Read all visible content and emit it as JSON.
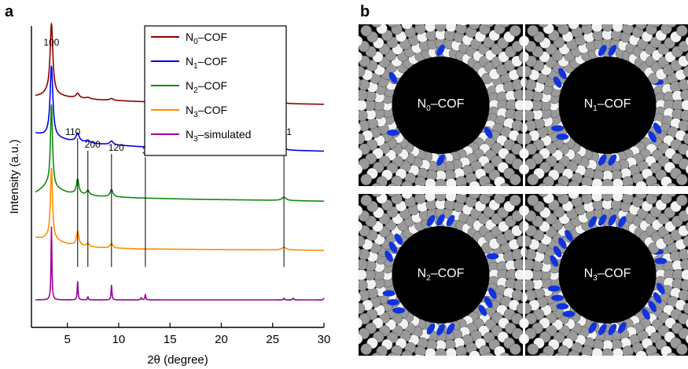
{
  "panel_a_letter": "a",
  "panel_b_letter": "b",
  "chart_data": {
    "type": "line",
    "xlabel": "2θ (degree)",
    "ylabel": "Intensity (a.u.)",
    "xlim": [
      1.5,
      30
    ],
    "x_ticks": [
      5,
      10,
      15,
      20,
      25,
      30
    ],
    "y_tick_labels": "none",
    "grid": false,
    "legend_position": "top-right",
    "series": [
      {
        "name": "N0–COF",
        "label_main": "N",
        "label_sub": "0",
        "label_rest": "–COF",
        "color": "#8b0000",
        "offset": 4,
        "baseline": [
          [
            1.9,
            0.2
          ],
          [
            2.5,
            0.22
          ],
          [
            3.0,
            0.26
          ],
          [
            5,
            0.18
          ],
          [
            8,
            0.12
          ],
          [
            12,
            0.08
          ],
          [
            18,
            0.06
          ],
          [
            25,
            0.04
          ],
          [
            30,
            0.02
          ]
        ],
        "peaks": [
          [
            3.45,
            1.55,
            0.16
          ],
          [
            6.0,
            0.1,
            0.18
          ],
          [
            7.0,
            0.03,
            0.2
          ],
          [
            9.3,
            0.04,
            0.2
          ],
          [
            26.1,
            0.03,
            0.25
          ]
        ]
      },
      {
        "name": "N1–COF",
        "label_main": "N",
        "label_sub": "1",
        "label_rest": "–COF",
        "color": "#0000ee",
        "offset": 3,
        "baseline": [
          [
            1.9,
            0.45
          ],
          [
            2.5,
            0.42
          ],
          [
            3.0,
            0.4
          ],
          [
            5,
            0.3
          ],
          [
            8,
            0.22
          ],
          [
            12,
            0.16
          ],
          [
            18,
            0.12
          ],
          [
            25,
            0.09
          ],
          [
            30,
            0.06
          ]
        ],
        "peaks": [
          [
            3.45,
            1.55,
            0.16
          ],
          [
            6.0,
            0.18,
            0.18
          ],
          [
            7.0,
            0.05,
            0.2
          ],
          [
            9.3,
            0.08,
            0.2
          ],
          [
            26.1,
            0.05,
            0.25
          ]
        ]
      },
      {
        "name": "N2–COF",
        "label_main": "N",
        "label_sub": "2",
        "label_rest": "–COF",
        "color": "#118811",
        "offset": 2,
        "baseline": [
          [
            1.9,
            0.22
          ],
          [
            2.5,
            0.3
          ],
          [
            3.0,
            0.38
          ],
          [
            5,
            0.22
          ],
          [
            8,
            0.14
          ],
          [
            12,
            0.1
          ],
          [
            18,
            0.07
          ],
          [
            25,
            0.05
          ],
          [
            30,
            0.03
          ]
        ],
        "peaks": [
          [
            3.45,
            1.8,
            0.12
          ],
          [
            6.0,
            0.32,
            0.14
          ],
          [
            7.0,
            0.1,
            0.16
          ],
          [
            9.3,
            0.16,
            0.16
          ],
          [
            26.1,
            0.07,
            0.25
          ]
        ]
      },
      {
        "name": "N3–COF",
        "label_main": "N",
        "label_sub": "3",
        "label_rest": "–COF",
        "color": "#ff8c00",
        "offset": 1,
        "baseline": [
          [
            1.9,
            0.3
          ],
          [
            2.5,
            0.28
          ],
          [
            3.0,
            0.3
          ],
          [
            5,
            0.16
          ],
          [
            8,
            0.08
          ],
          [
            12,
            0.05
          ],
          [
            18,
            0.04
          ],
          [
            25,
            0.03
          ],
          [
            30,
            0.02
          ]
        ],
        "peaks": [
          [
            3.45,
            1.55,
            0.12
          ],
          [
            6.0,
            0.3,
            0.14
          ],
          [
            7.0,
            0.06,
            0.16
          ],
          [
            9.3,
            0.1,
            0.16
          ],
          [
            26.1,
            0.06,
            0.25
          ]
        ]
      },
      {
        "name": "N3–simulated",
        "label_main": "N",
        "label_sub": "3",
        "label_rest": "–simulated",
        "color": "#990099",
        "offset": 0,
        "baseline": [
          [
            1.9,
            0.0
          ],
          [
            30,
            0.0
          ]
        ],
        "peaks": [
          [
            3.45,
            1.6,
            0.05
          ],
          [
            6.0,
            0.4,
            0.05
          ],
          [
            7.0,
            0.07,
            0.05
          ],
          [
            9.3,
            0.32,
            0.05
          ],
          [
            12.2,
            0.05,
            0.05
          ],
          [
            12.6,
            0.12,
            0.05
          ],
          [
            26.1,
            0.04,
            0.05
          ],
          [
            27.0,
            0.04,
            0.05
          ],
          [
            30.0,
            0.04,
            0.05
          ]
        ]
      }
    ],
    "peak_labels": [
      {
        "text": "100",
        "x": 3.45
      },
      {
        "text": "110",
        "x": 6.0
      },
      {
        "text": "200",
        "x": 7.0
      },
      {
        "text": "120",
        "x": 9.3
      },
      {
        "text": "320",
        "x": 12.6
      },
      {
        "text": "001",
        "x": 26.1
      }
    ]
  },
  "tiles": [
    {
      "label_main": "N",
      "label_sub": "0",
      "label_rest": "–COF",
      "pattern": "n0"
    },
    {
      "label_main": "N",
      "label_sub": "1",
      "label_rest": "–COF",
      "pattern": "n1"
    },
    {
      "label_main": "N",
      "label_sub": "2",
      "label_rest": "–COF",
      "pattern": "n2"
    },
    {
      "label_main": "N",
      "label_sub": "3",
      "label_rest": "–COF",
      "pattern": "n3"
    }
  ],
  "colors": {
    "atom_gray": "#9a9a9a",
    "atom_white": "#f2f2f2",
    "nitrogen_blue": "#1133dd",
    "pore_black": "#000000"
  }
}
